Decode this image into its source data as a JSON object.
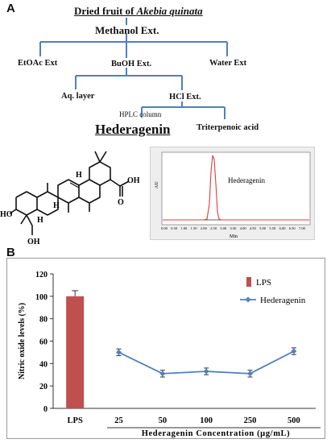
{
  "panel_a": {
    "label": "A",
    "title_prefix": "Dried fruit of ",
    "title_species": "Akebia quinata",
    "methanol": "Methanol Ext.",
    "etoac": "EtOAc Ext",
    "buoh": "BuOH Ext.",
    "water": "Water Ext",
    "aq_layer": "Aq. layer",
    "hcl": "HCl Ext.",
    "hplc_column": "HPLC column",
    "hederagenin": "Hederagenin",
    "triterpenoic": "Triterpenoic acid",
    "structure_labels": {
      "oh_top": "OH",
      "o_acid": "O",
      "ho_left": "HO",
      "oh_bottom": "OH",
      "h1": "H",
      "h2": "H",
      "h3": "H"
    },
    "hplc": {
      "y_label": "AU",
      "x_label": "Min",
      "peak_label": "Hederagenin",
      "peak_color": "#e03a3a",
      "ticks": [
        "0.00",
        "0.50",
        "1.00",
        "1.50",
        "2.00",
        "2.50",
        "3.00",
        "3.50",
        "4.00",
        "4.50",
        "5.00",
        "5.50",
        "6.00",
        "6.50",
        "7.00"
      ]
    }
  },
  "panel_b": {
    "label": "B"
  },
  "chart_data": {
    "type": "bar",
    "ylabel": "Nitric oxide levels (%)",
    "xlabel": "Hederagenin Concentration (µg/mL)",
    "ylim": [
      0,
      120
    ],
    "yticks": [
      "0",
      "20",
      "40",
      "60",
      "80",
      "100",
      "120"
    ],
    "categories": [
      "LPS",
      "25",
      "50",
      "100",
      "250",
      "500"
    ],
    "legend_position": "top-right",
    "series": [
      {
        "name": "LPS",
        "kind": "bar",
        "color": "#c0504d",
        "points": [
          {
            "x": "LPS",
            "y": 100,
            "err": 5
          }
        ]
      },
      {
        "name": "Hederagenin",
        "kind": "line",
        "color": "#4f81bd",
        "points": [
          {
            "x": "25",
            "y": 50,
            "err": 3
          },
          {
            "x": "50",
            "y": 31,
            "err": 3
          },
          {
            "x": "100",
            "y": 33,
            "err": 3
          },
          {
            "x": "250",
            "y": 31,
            "err": 3
          },
          {
            "x": "500",
            "y": 51,
            "err": 3
          }
        ]
      }
    ]
  }
}
